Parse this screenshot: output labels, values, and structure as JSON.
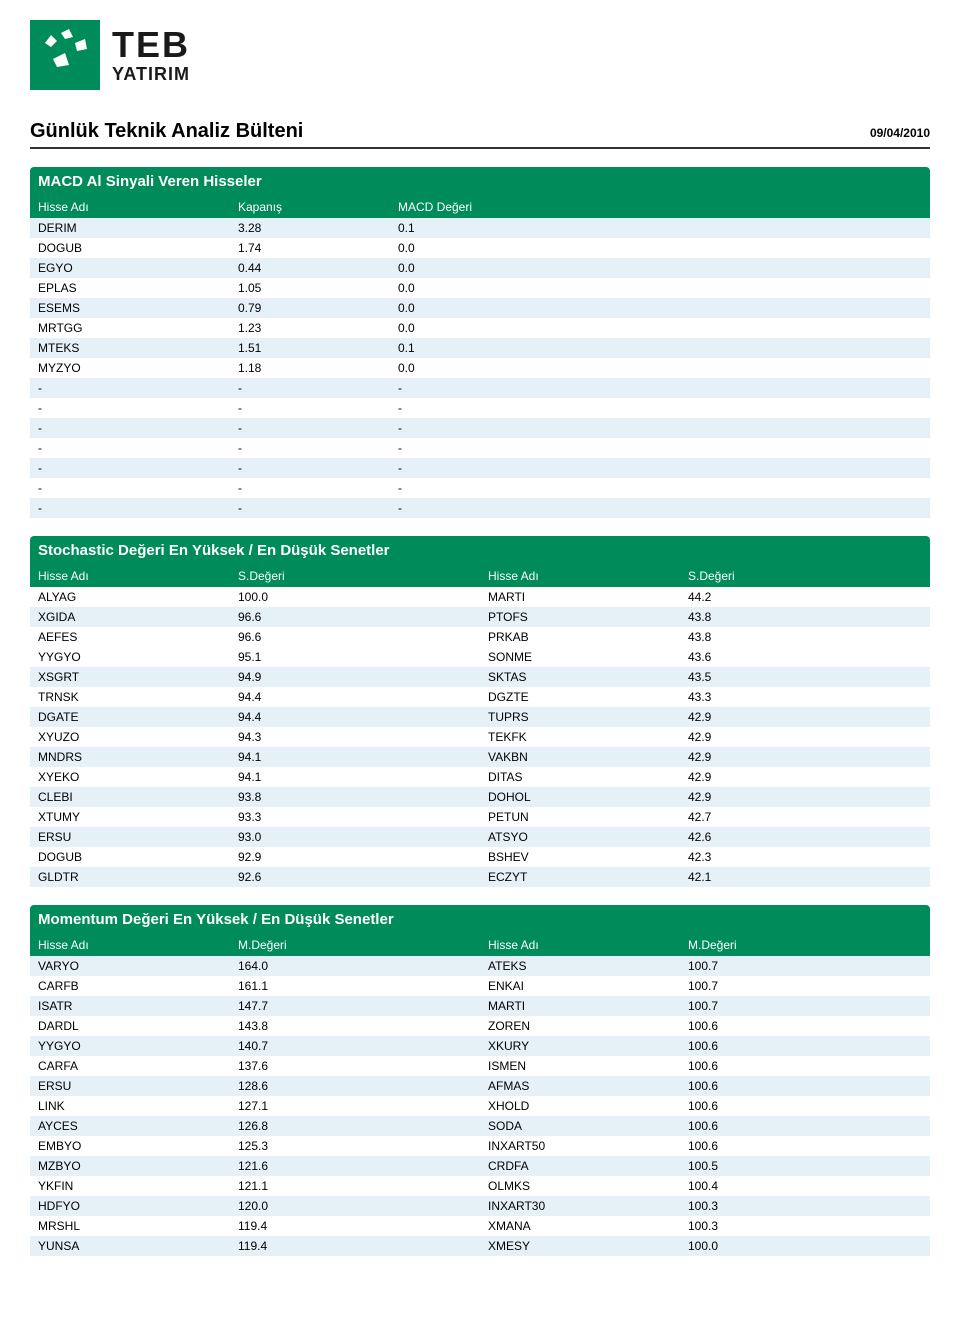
{
  "header": {
    "brand_top": "TEB",
    "brand_bottom": "YATIRIM",
    "page_title": "Günlük Teknik Analiz Bülteni",
    "date": "09/04/2010"
  },
  "macd": {
    "section_title": "MACD Al Sinyali Veren Hisseler",
    "columns": [
      "Hisse Adı",
      "Kapanış",
      "MACD Değeri"
    ],
    "rows": [
      [
        "DERIM",
        "3.28",
        "0.1"
      ],
      [
        "DOGUB",
        "1.74",
        "0.0"
      ],
      [
        "EGYO",
        "0.44",
        "0.0"
      ],
      [
        "EPLAS",
        "1.05",
        "0.0"
      ],
      [
        "ESEMS",
        "0.79",
        "0.0"
      ],
      [
        "MRTGG",
        "1.23",
        "0.0"
      ],
      [
        "MTEKS",
        "1.51",
        "0.1"
      ],
      [
        "MYZYO",
        "1.18",
        "0.0"
      ],
      [
        "-",
        "-",
        "-"
      ],
      [
        "-",
        "-",
        "-"
      ],
      [
        "-",
        "-",
        "-"
      ],
      [
        "-",
        "-",
        "-"
      ],
      [
        "-",
        "-",
        "-"
      ],
      [
        "-",
        "-",
        "-"
      ],
      [
        "-",
        "-",
        "-"
      ]
    ]
  },
  "stochastic": {
    "section_title": "Stochastic Değeri En Yüksek / En Düşük Senetler",
    "columns": [
      "Hisse Adı",
      "S.Değeri",
      "Hisse Adı",
      "S.Değeri"
    ],
    "rows": [
      [
        "ALYAG",
        "100.0",
        "MARTI",
        "44.2"
      ],
      [
        "XGIDA",
        "96.6",
        "PTOFS",
        "43.8"
      ],
      [
        "AEFES",
        "96.6",
        "PRKAB",
        "43.8"
      ],
      [
        "YYGYO",
        "95.1",
        "SONME",
        "43.6"
      ],
      [
        "XSGRT",
        "94.9",
        "SKTAS",
        "43.5"
      ],
      [
        "TRNSK",
        "94.4",
        "DGZTE",
        "43.3"
      ],
      [
        "DGATE",
        "94.4",
        "TUPRS",
        "42.9"
      ],
      [
        "XYUZO",
        "94.3",
        "TEKFK",
        "42.9"
      ],
      [
        "MNDRS",
        "94.1",
        "VAKBN",
        "42.9"
      ],
      [
        "XYEKO",
        "94.1",
        "DITAS",
        "42.9"
      ],
      [
        "CLEBI",
        "93.8",
        "DOHOL",
        "42.9"
      ],
      [
        "XTUMY",
        "93.3",
        "PETUN",
        "42.7"
      ],
      [
        "ERSU",
        "93.0",
        "ATSYO",
        "42.6"
      ],
      [
        "DOGUB",
        "92.9",
        "BSHEV",
        "42.3"
      ],
      [
        "GLDTR",
        "92.6",
        "ECZYT",
        "42.1"
      ]
    ]
  },
  "momentum": {
    "section_title": "Momentum Değeri En Yüksek / En Düşük Senetler",
    "columns": [
      "Hisse Adı",
      "M.Değeri",
      "Hisse Adı",
      "M.Değeri"
    ],
    "rows": [
      [
        "VARYO",
        "164.0",
        "ATEKS",
        "100.7"
      ],
      [
        "CARFB",
        "161.1",
        "ENKAI",
        "100.7"
      ],
      [
        "ISATR",
        "147.7",
        "MARTI",
        "100.7"
      ],
      [
        "DARDL",
        "143.8",
        "ZOREN",
        "100.6"
      ],
      [
        "YYGYO",
        "140.7",
        "XKURY",
        "100.6"
      ],
      [
        "CARFA",
        "137.6",
        "ISMEN",
        "100.6"
      ],
      [
        "ERSU",
        "128.6",
        "AFMAS",
        "100.6"
      ],
      [
        "LINK",
        "127.1",
        "XHOLD",
        "100.6"
      ],
      [
        "AYCES",
        "126.8",
        "SODA",
        "100.6"
      ],
      [
        "EMBYO",
        "125.3",
        "INXART50",
        "100.6"
      ],
      [
        "MZBYO",
        "121.6",
        "CRDFA",
        "100.5"
      ],
      [
        "YKFIN",
        "121.1",
        "OLMKS",
        "100.4"
      ],
      [
        "HDFYO",
        "120.0",
        "INXART30",
        "100.3"
      ],
      [
        "MRSHL",
        "119.4",
        "XMANA",
        "100.3"
      ],
      [
        "YUNSA",
        "119.4",
        "XMESY",
        "100.0"
      ]
    ]
  },
  "colors": {
    "brand_green": "#008c5a",
    "stripe": "#e6f0f7",
    "text": "#000000",
    "white": "#ffffff"
  }
}
